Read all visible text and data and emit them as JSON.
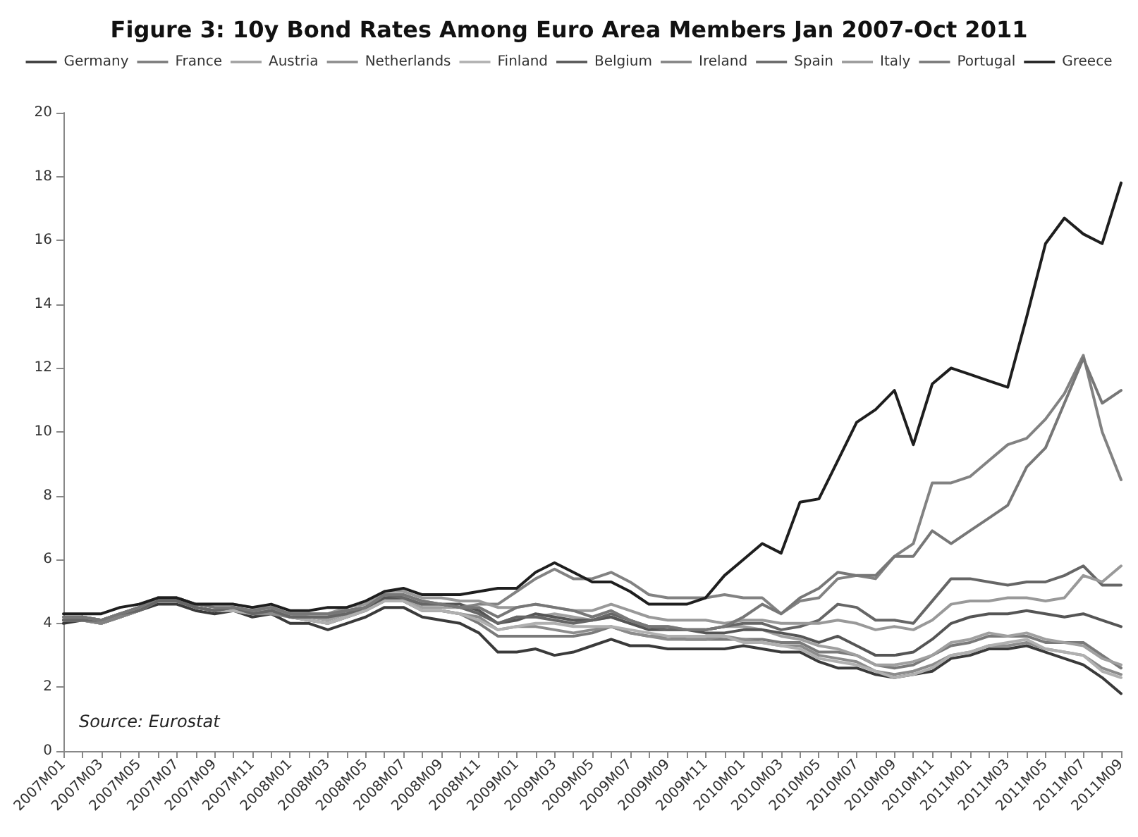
{
  "chart_data": {
    "type": "line",
    "title": "Figure 3: 10y Bond Rates Among Euro Area Members Jan 2007-Oct 2011",
    "categories": [
      "2007M01",
      null,
      "2007M03",
      null,
      "2007M05",
      null,
      "2007M07",
      null,
      "2007M09",
      null,
      "2007M11",
      null,
      "2008M01",
      null,
      "2008M03",
      null,
      "2008M05",
      null,
      "2008M07",
      null,
      "2008M09",
      null,
      "2008M11",
      null,
      "2009M01",
      null,
      "2009M03",
      null,
      "2009M05",
      null,
      "2009M07",
      null,
      "2009M09",
      null,
      "2009M11",
      null,
      "2010M01",
      null,
      "2010M03",
      null,
      "2010M05",
      null,
      "2010M07",
      null,
      "2010M09",
      null,
      "2010M11",
      null,
      "2011M01",
      null,
      "2011M03",
      null,
      "2011M05",
      null,
      "2011M07",
      null,
      "2011M09"
    ],
    "series": [
      {
        "name": "Germany",
        "color": "#3a3a3a",
        "values": [
          4.0,
          4.1,
          4.0,
          4.2,
          4.4,
          4.6,
          4.6,
          4.4,
          4.3,
          4.4,
          4.2,
          4.3,
          4.0,
          4.0,
          3.8,
          4.0,
          4.2,
          4.5,
          4.5,
          4.2,
          4.1,
          4.0,
          3.7,
          3.1,
          3.1,
          3.2,
          3.0,
          3.1,
          3.3,
          3.5,
          3.3,
          3.3,
          3.2,
          3.2,
          3.2,
          3.2,
          3.3,
          3.2,
          3.1,
          3.1,
          2.8,
          2.6,
          2.6,
          2.4,
          2.3,
          2.4,
          2.5,
          2.9,
          3.0,
          3.2,
          3.2,
          3.3,
          3.1,
          2.9,
          2.7,
          2.3,
          1.8
        ]
      },
      {
        "name": "France",
        "color": "#7a7a7a",
        "values": [
          4.1,
          4.2,
          4.1,
          4.3,
          4.4,
          4.7,
          4.7,
          4.5,
          4.4,
          4.4,
          4.3,
          4.4,
          4.2,
          4.1,
          4.0,
          4.2,
          4.4,
          4.8,
          4.7,
          4.4,
          4.4,
          4.3,
          4.0,
          3.6,
          3.6,
          3.6,
          3.6,
          3.6,
          3.7,
          3.9,
          3.7,
          3.6,
          3.6,
          3.5,
          3.5,
          3.5,
          3.5,
          3.5,
          3.4,
          3.4,
          3.1,
          3.1,
          3.0,
          2.7,
          2.6,
          2.7,
          3.0,
          3.3,
          3.4,
          3.6,
          3.6,
          3.6,
          3.4,
          3.4,
          3.4,
          3.0,
          2.6
        ]
      },
      {
        "name": "Austria",
        "color": "#a0a0a0",
        "values": [
          4.1,
          4.2,
          4.1,
          4.3,
          4.5,
          4.7,
          4.7,
          4.5,
          4.4,
          4.5,
          4.3,
          4.4,
          4.2,
          4.2,
          4.1,
          4.3,
          4.4,
          4.8,
          4.8,
          4.5,
          4.5,
          4.5,
          4.4,
          4.0,
          4.2,
          4.2,
          4.3,
          4.2,
          4.1,
          4.2,
          4.0,
          3.9,
          3.9,
          3.8,
          3.8,
          3.9,
          3.9,
          3.8,
          3.6,
          3.5,
          3.3,
          3.2,
          3.0,
          2.7,
          2.7,
          2.8,
          3.0,
          3.4,
          3.5,
          3.7,
          3.6,
          3.7,
          3.5,
          3.4,
          3.3,
          2.9,
          2.7
        ]
      },
      {
        "name": "Netherlands",
        "color": "#8c8c8c",
        "values": [
          4.1,
          4.1,
          4.0,
          4.2,
          4.4,
          4.7,
          4.7,
          4.5,
          4.4,
          4.4,
          4.3,
          4.3,
          4.2,
          4.1,
          4.0,
          4.2,
          4.4,
          4.7,
          4.7,
          4.4,
          4.4,
          4.3,
          4.2,
          3.8,
          3.9,
          3.9,
          3.8,
          3.7,
          3.8,
          3.9,
          3.7,
          3.6,
          3.5,
          3.5,
          3.5,
          3.6,
          3.5,
          3.4,
          3.3,
          3.3,
          3.0,
          2.9,
          2.8,
          2.5,
          2.4,
          2.5,
          2.7,
          3.0,
          3.1,
          3.3,
          3.3,
          3.4,
          3.2,
          3.1,
          3.0,
          2.6,
          2.4
        ]
      },
      {
        "name": "Finland",
        "color": "#b0b0b0",
        "values": [
          4.1,
          4.1,
          4.0,
          4.2,
          4.4,
          4.7,
          4.7,
          4.5,
          4.4,
          4.4,
          4.3,
          4.4,
          4.2,
          4.1,
          4.0,
          4.2,
          4.4,
          4.7,
          4.7,
          4.4,
          4.4,
          4.3,
          4.1,
          3.8,
          3.9,
          4.0,
          4.0,
          3.9,
          3.9,
          3.9,
          3.8,
          3.7,
          3.6,
          3.6,
          3.6,
          3.6,
          3.4,
          3.4,
          3.3,
          3.2,
          2.9,
          2.8,
          2.7,
          2.5,
          2.3,
          2.4,
          2.6,
          3.0,
          3.1,
          3.3,
          3.4,
          3.5,
          3.2,
          3.1,
          3.0,
          2.5,
          2.3
        ]
      },
      {
        "name": "Belgium",
        "color": "#555555",
        "values": [
          4.1,
          4.2,
          4.1,
          4.3,
          4.5,
          4.7,
          4.7,
          4.5,
          4.4,
          4.5,
          4.4,
          4.5,
          4.2,
          4.2,
          4.2,
          4.4,
          4.5,
          4.8,
          4.8,
          4.6,
          4.6,
          4.6,
          4.4,
          4.0,
          4.1,
          4.3,
          4.2,
          4.1,
          4.1,
          4.2,
          4.0,
          3.8,
          3.8,
          3.8,
          3.7,
          3.7,
          3.8,
          3.8,
          3.7,
          3.6,
          3.4,
          3.6,
          3.3,
          3.0,
          3.0,
          3.1,
          3.5,
          4.0,
          4.2,
          4.3,
          4.3,
          4.4,
          4.3,
          4.2,
          4.3,
          4.1,
          3.9
        ]
      },
      {
        "name": "Ireland",
        "color": "#828282",
        "values": [
          4.1,
          4.1,
          4.0,
          4.2,
          4.4,
          4.7,
          4.7,
          4.5,
          4.4,
          4.5,
          4.3,
          4.4,
          4.3,
          4.2,
          4.2,
          4.4,
          4.5,
          4.9,
          4.9,
          4.7,
          4.6,
          4.5,
          4.6,
          4.6,
          5.0,
          5.4,
          5.7,
          5.4,
          5.4,
          5.6,
          5.3,
          4.9,
          4.8,
          4.8,
          4.8,
          4.9,
          4.8,
          4.8,
          4.3,
          4.7,
          4.8,
          5.4,
          5.5,
          5.4,
          6.1,
          6.5,
          8.4,
          8.4,
          8.6,
          9.1,
          9.6,
          9.8,
          10.4,
          11.2,
          12.4,
          10.0,
          8.5
        ]
      },
      {
        "name": "Spain",
        "color": "#666666",
        "values": [
          4.1,
          4.1,
          4.1,
          4.3,
          4.4,
          4.7,
          4.7,
          4.5,
          4.4,
          4.5,
          4.3,
          4.4,
          4.2,
          4.2,
          4.2,
          4.3,
          4.5,
          4.9,
          4.8,
          4.6,
          4.6,
          4.5,
          4.3,
          4.0,
          4.2,
          4.2,
          4.1,
          4.0,
          4.1,
          4.3,
          4.1,
          3.9,
          3.8,
          3.8,
          3.8,
          3.9,
          4.0,
          4.0,
          3.8,
          3.9,
          4.1,
          4.6,
          4.5,
          4.1,
          4.1,
          4.0,
          4.7,
          5.4,
          5.4,
          5.3,
          5.2,
          5.3,
          5.3,
          5.5,
          5.8,
          5.2,
          5.2
        ]
      },
      {
        "name": "Italy",
        "color": "#999999",
        "values": [
          4.2,
          4.2,
          4.1,
          4.3,
          4.5,
          4.8,
          4.8,
          4.6,
          4.6,
          4.6,
          4.5,
          4.5,
          4.3,
          4.3,
          4.3,
          4.5,
          4.6,
          5.0,
          5.0,
          4.8,
          4.8,
          4.7,
          4.7,
          4.5,
          4.5,
          4.6,
          4.5,
          4.4,
          4.4,
          4.6,
          4.4,
          4.2,
          4.1,
          4.1,
          4.1,
          4.0,
          4.1,
          4.1,
          4.0,
          4.0,
          4.0,
          4.1,
          4.0,
          3.8,
          3.9,
          3.8,
          4.1,
          4.6,
          4.7,
          4.7,
          4.8,
          4.8,
          4.7,
          4.8,
          5.5,
          5.3,
          5.8
        ]
      },
      {
        "name": "Portugal",
        "color": "#777777",
        "values": [
          4.2,
          4.2,
          4.1,
          4.3,
          4.5,
          4.8,
          4.8,
          4.6,
          4.5,
          4.5,
          4.4,
          4.5,
          4.3,
          4.3,
          4.3,
          4.4,
          4.5,
          4.9,
          4.9,
          4.7,
          4.6,
          4.5,
          4.5,
          4.2,
          4.5,
          4.6,
          4.5,
          4.4,
          4.2,
          4.4,
          4.1,
          3.9,
          3.9,
          3.8,
          3.8,
          3.9,
          4.2,
          4.6,
          4.3,
          4.8,
          5.1,
          5.6,
          5.5,
          5.5,
          6.1,
          6.1,
          6.9,
          6.5,
          6.9,
          7.3,
          7.7,
          8.9,
          9.5,
          10.9,
          12.3,
          10.9,
          11.3
        ]
      },
      {
        "name": "Greece",
        "color": "#1e1e1e",
        "values": [
          4.3,
          4.3,
          4.3,
          4.5,
          4.6,
          4.8,
          4.8,
          4.6,
          4.6,
          4.6,
          4.5,
          4.6,
          4.4,
          4.4,
          4.5,
          4.5,
          4.7,
          5.0,
          5.1,
          4.9,
          4.9,
          4.9,
          5.0,
          5.1,
          5.1,
          5.6,
          5.9,
          5.6,
          5.3,
          5.3,
          5.0,
          4.6,
          4.6,
          4.6,
          4.8,
          5.5,
          6.0,
          6.5,
          6.2,
          7.8,
          7.9,
          9.1,
          10.3,
          10.7,
          11.3,
          9.6,
          11.5,
          12.0,
          11.8,
          11.6,
          11.4,
          13.6,
          15.9,
          16.7,
          16.2,
          15.9,
          17.8
        ]
      }
    ],
    "ylim": [
      0,
      20
    ],
    "yticks": [
      0,
      2,
      4,
      6,
      8,
      10,
      12,
      14,
      16,
      18,
      20
    ],
    "annotations": [
      "Source: Eurostat"
    ],
    "legend": "top",
    "grid": false,
    "marker": "none",
    "line_style": "solid"
  }
}
